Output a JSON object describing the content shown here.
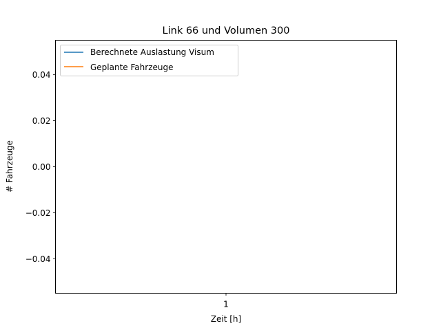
{
  "chart_data": {
    "type": "line",
    "title": "Link 66 und Volumen 300",
    "xlabel": "Zeit [h]",
    "ylabel": "# Fahrzeuge",
    "x_ticks": [
      "1"
    ],
    "y_ticks": [
      -0.04,
      -0.02,
      0.0,
      0.02,
      0.04
    ],
    "y_tick_labels": [
      "−0.04",
      "−0.02",
      "0.00",
      "0.02",
      "0.04"
    ],
    "ylim": [
      -0.055,
      0.055
    ],
    "grid": false,
    "legend_position": "upper-left",
    "series": [
      {
        "name": "Berechnete Auslastung Visum",
        "color": "#1f77b4",
        "values": []
      },
      {
        "name": "Geplante Fahrzeuge",
        "color": "#ff7f0e",
        "values": []
      }
    ]
  }
}
